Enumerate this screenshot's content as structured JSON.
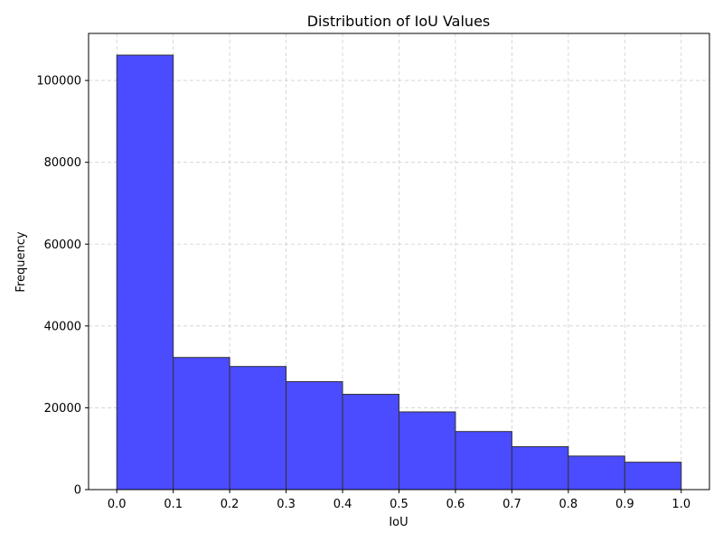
{
  "chart_data": {
    "type": "bar",
    "title": "Distribution of IoU Values",
    "xlabel": "IoU",
    "ylabel": "Frequency",
    "bin_edges": [
      0.0,
      0.1,
      0.2,
      0.3,
      0.4,
      0.5,
      0.6,
      0.7,
      0.8,
      0.9,
      1.0
    ],
    "values": [
      106200,
      32300,
      30100,
      26400,
      23300,
      19000,
      14200,
      10500,
      8200,
      6700
    ],
    "xlim": [
      -0.05,
      1.05
    ],
    "ylim": [
      0,
      111500
    ],
    "xticks": [
      0.0,
      0.1,
      0.2,
      0.3,
      0.4,
      0.5,
      0.6,
      0.7,
      0.8,
      0.9,
      1.0
    ],
    "xtick_labels": [
      "0.0",
      "0.1",
      "0.2",
      "0.3",
      "0.4",
      "0.5",
      "0.6",
      "0.7",
      "0.8",
      "0.9",
      "1.0"
    ],
    "yticks": [
      0,
      20000,
      40000,
      60000,
      80000,
      100000
    ],
    "ytick_labels": [
      "0",
      "20000",
      "40000",
      "60000",
      "80000",
      "100000"
    ],
    "grid": true,
    "bar_color": "#4b4bff",
    "edge_color": "#333333"
  }
}
